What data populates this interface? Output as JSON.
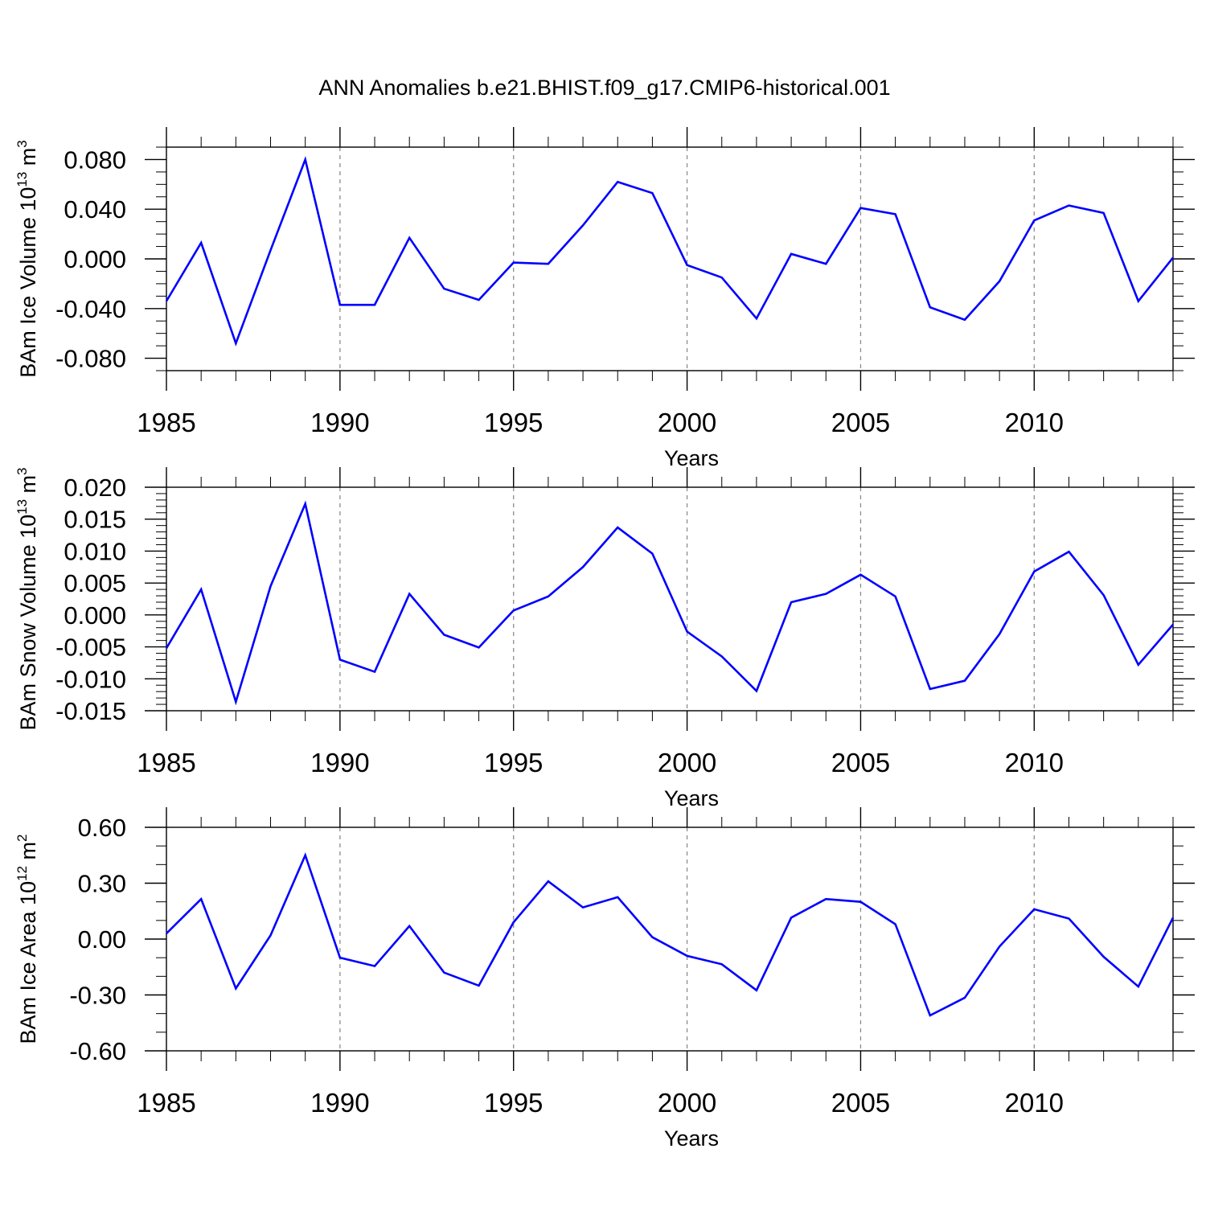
{
  "figure": {
    "title": "ANN Anomalies b.e21.BHIST.f09_g17.CMIP6-historical.001",
    "line_color": "#0000ff",
    "grid_color": "#8c8c8c",
    "axis_color": "#000000"
  },
  "chart_data": [
    {
      "type": "line",
      "title": "",
      "xlabel": "Years",
      "ylabel_text": "BAm Ice Volume 10",
      "ylabel_exp": "13",
      "ylabel_unit": " m",
      "ylabel_unit_exp": "3",
      "xlim": [
        1985,
        2014
      ],
      "ylim": [
        -0.09,
        0.09
      ],
      "x_ticks": [
        1985,
        1990,
        1995,
        2000,
        2005,
        2010
      ],
      "x_tick_labels": [
        "1985",
        "1990",
        "1995",
        "2000",
        "2005",
        "2010"
      ],
      "y_ticks": [
        -0.08,
        -0.04,
        0.0,
        0.04,
        0.08
      ],
      "y_tick_labels": [
        "-0.080",
        "-0.040",
        "0.000",
        "0.040",
        "0.080"
      ],
      "y_minor_step": 0.01,
      "grid_x": [
        1990,
        1995,
        2000,
        2005,
        2010
      ],
      "x": [
        1985,
        1986,
        1987,
        1988,
        1989,
        1990,
        1991,
        1992,
        1993,
        1994,
        1995,
        1996,
        1997,
        1998,
        1999,
        2000,
        2001,
        2002,
        2003,
        2004,
        2005,
        2006,
        2007,
        2008,
        2009,
        2010,
        2011,
        2012,
        2013,
        2014
      ],
      "series": [
        {
          "name": "BAm Ice Volume",
          "values": [
            -0.034,
            0.013,
            -0.068,
            0.007,
            0.08,
            -0.037,
            -0.037,
            0.017,
            -0.024,
            -0.033,
            -0.003,
            -0.004,
            0.027,
            0.062,
            0.053,
            -0.005,
            -0.015,
            -0.048,
            0.004,
            -0.004,
            0.041,
            0.036,
            -0.039,
            -0.049,
            -0.018,
            0.031,
            0.043,
            0.037,
            -0.034,
            0.001
          ]
        }
      ]
    },
    {
      "type": "line",
      "title": "",
      "xlabel": "Years",
      "ylabel_text": "BAm Snow Volume 10",
      "ylabel_exp": "13",
      "ylabel_unit": " m",
      "ylabel_unit_exp": "3",
      "xlim": [
        1985,
        2014
      ],
      "ylim": [
        -0.015,
        0.02
      ],
      "x_ticks": [
        1985,
        1990,
        1995,
        2000,
        2005,
        2010
      ],
      "x_tick_labels": [
        "1985",
        "1990",
        "1995",
        "2000",
        "2005",
        "2010"
      ],
      "y_ticks": [
        -0.015,
        -0.01,
        -0.005,
        0.0,
        0.005,
        0.01,
        0.015,
        0.02
      ],
      "y_tick_labels": [
        "-0.015",
        "-0.010",
        "-0.005",
        "0.000",
        "0.005",
        "0.010",
        "0.015",
        "0.020"
      ],
      "y_minor_step": 0.001,
      "grid_x": [
        1990,
        1995,
        2000,
        2005,
        2010
      ],
      "x": [
        1985,
        1986,
        1987,
        1988,
        1989,
        1990,
        1991,
        1992,
        1993,
        1994,
        1995,
        1996,
        1997,
        1998,
        1999,
        2000,
        2001,
        2002,
        2003,
        2004,
        2005,
        2006,
        2007,
        2008,
        2009,
        2010,
        2011,
        2012,
        2013,
        2014
      ],
      "series": [
        {
          "name": "BAm Snow Volume",
          "values": [
            -0.0052,
            0.004,
            -0.0136,
            0.0045,
            0.0174,
            -0.007,
            -0.0089,
            0.0033,
            -0.0031,
            -0.0051,
            0.0007,
            0.0029,
            0.0075,
            0.0137,
            0.0096,
            -0.0026,
            -0.0065,
            -0.0119,
            0.002,
            0.0033,
            0.0063,
            0.0029,
            -0.0116,
            -0.0103,
            -0.003,
            0.0068,
            0.0099,
            0.0031,
            -0.0078,
            -0.0015
          ]
        }
      ]
    },
    {
      "type": "line",
      "title": "",
      "xlabel": "Years",
      "ylabel_text": "BAm Ice Area 10",
      "ylabel_exp": "12",
      "ylabel_unit": " m",
      "ylabel_unit_exp": "2",
      "xlim": [
        1985,
        2014
      ],
      "ylim": [
        -0.6,
        0.6
      ],
      "x_ticks": [
        1985,
        1990,
        1995,
        2000,
        2005,
        2010
      ],
      "x_tick_labels": [
        "1985",
        "1990",
        "1995",
        "2000",
        "2005",
        "2010"
      ],
      "y_ticks": [
        -0.6,
        -0.3,
        0.0,
        0.3,
        0.6
      ],
      "y_tick_labels": [
        "-0.60",
        "-0.30",
        "0.00",
        "0.30",
        "0.60"
      ],
      "y_minor_step": 0.1,
      "grid_x": [
        1990,
        1995,
        2000,
        2005,
        2010
      ],
      "x": [
        1985,
        1986,
        1987,
        1988,
        1989,
        1990,
        1991,
        1992,
        1993,
        1994,
        1995,
        1996,
        1997,
        1998,
        1999,
        2000,
        2001,
        2002,
        2003,
        2004,
        2005,
        2006,
        2007,
        2008,
        2009,
        2010,
        2011,
        2012,
        2013,
        2014
      ],
      "series": [
        {
          "name": "BAm Ice Area",
          "values": [
            0.03,
            0.215,
            -0.265,
            0.02,
            0.45,
            -0.1,
            -0.145,
            0.07,
            -0.18,
            -0.25,
            0.09,
            0.31,
            0.17,
            0.225,
            0.01,
            -0.09,
            -0.135,
            -0.275,
            0.115,
            0.215,
            0.2,
            0.08,
            -0.41,
            -0.315,
            -0.04,
            0.16,
            0.11,
            -0.095,
            -0.255,
            0.115
          ]
        }
      ]
    }
  ]
}
